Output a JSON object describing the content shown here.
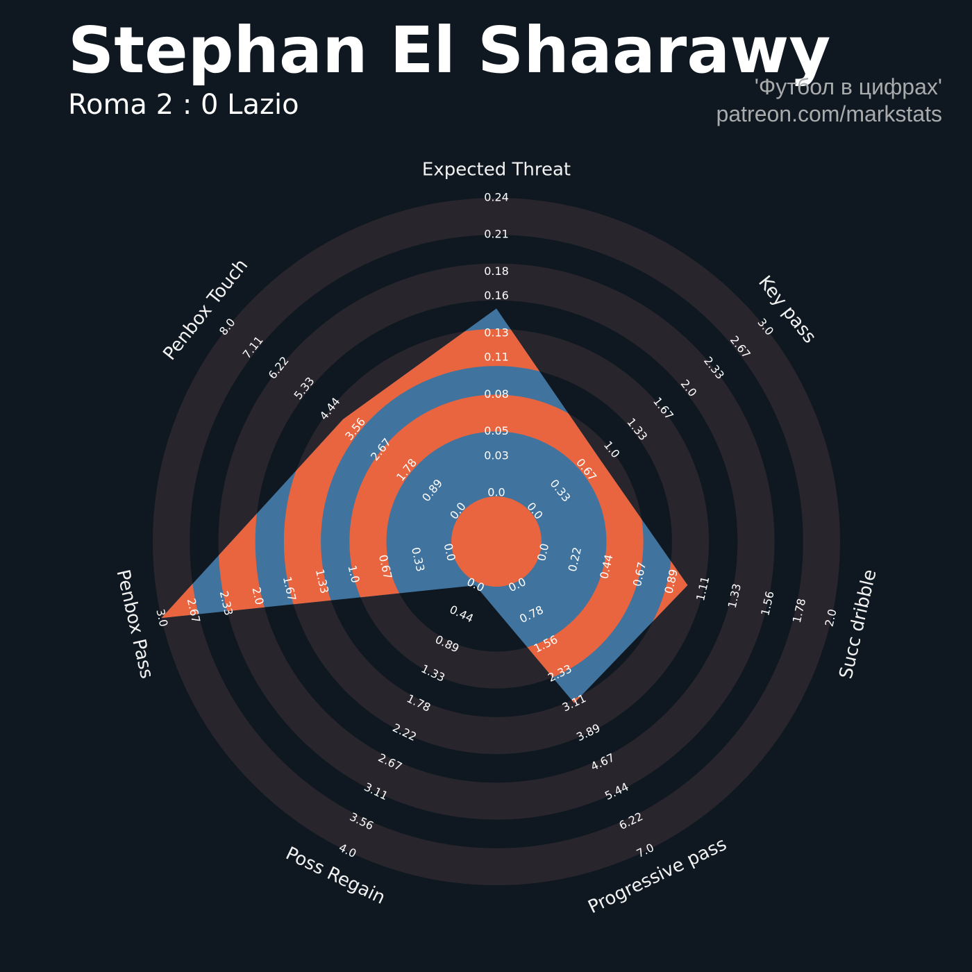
{
  "chart_data": {
    "type": "radar",
    "title": "Stephan El Shaarawy",
    "subtitle": "Roma 2 : 0 Lazio",
    "credits": [
      "'Футбол в цифрах'",
      "patreon.com/markstats"
    ],
    "categories": [
      "Expected Threat",
      "Key pass",
      "Succ dribble",
      "Progressive pass",
      "Poss Regain",
      "Penbox Pass",
      "Penbox Touch"
    ],
    "values": [
      0.15,
      0.85,
      1.0,
      3.1,
      0,
      3.0,
      4
    ],
    "color": "#41739f",
    "ring_color": "#28252c",
    "highlight_color": "#e8653f",
    "axes": [
      {
        "lim": [
          0,
          0.24
        ],
        "ticks": [
          {
            "value": 0,
            "label": "0.0"
          },
          0.03,
          0.05,
          0.08,
          0.11,
          0.13,
          0.16,
          0.18,
          0.21,
          0.24
        ]
      },
      {
        "lim": [
          0,
          3
        ],
        "ticks": [
          {
            "value": 0,
            "label": "0.0"
          },
          0.33,
          0.67,
          {
            "value": 1,
            "label": "1.0"
          },
          1.33,
          1.67,
          {
            "value": 2,
            "label": "2.0"
          },
          2.33,
          2.67,
          {
            "value": 3,
            "label": "3.0"
          }
        ]
      },
      {
        "lim": [
          0,
          2
        ],
        "ticks": [
          {
            "value": 0,
            "label": "0.0"
          },
          0.22,
          0.44,
          0.67,
          0.89,
          1.11,
          1.33,
          1.56,
          1.78,
          {
            "value": 2,
            "label": "2.0"
          }
        ]
      },
      {
        "lim": [
          0,
          7
        ],
        "ticks": [
          {
            "value": 0,
            "label": "0.0"
          },
          0.78,
          1.56,
          2.33,
          3.11,
          3.89,
          4.67,
          5.44,
          6.22,
          {
            "value": 7,
            "label": "7.0"
          }
        ]
      },
      {
        "lim": [
          0,
          4
        ],
        "ticks": [
          {
            "value": 0,
            "label": "0.0"
          },
          0.44,
          0.89,
          1.33,
          1.78,
          2.22,
          2.67,
          3.11,
          3.56,
          {
            "value": 4,
            "label": "4.0"
          }
        ]
      },
      {
        "lim": [
          0,
          3
        ],
        "ticks": [
          {
            "value": 0,
            "label": "0.0"
          },
          0.33,
          0.67,
          {
            "value": 1,
            "label": "1.0"
          },
          1.33,
          1.67,
          {
            "value": 2,
            "label": "2.0"
          },
          2.33,
          2.67,
          {
            "value": 3,
            "label": "3.0"
          }
        ]
      },
      {
        "lim": [
          0,
          8
        ],
        "ticks": [
          {
            "value": 0,
            "label": "0.0"
          },
          0.89,
          1.78,
          2.67,
          3.56,
          4.44,
          5.33,
          6.22,
          7.11,
          {
            "value": 8,
            "label": "8.0"
          }
        ]
      }
    ]
  }
}
